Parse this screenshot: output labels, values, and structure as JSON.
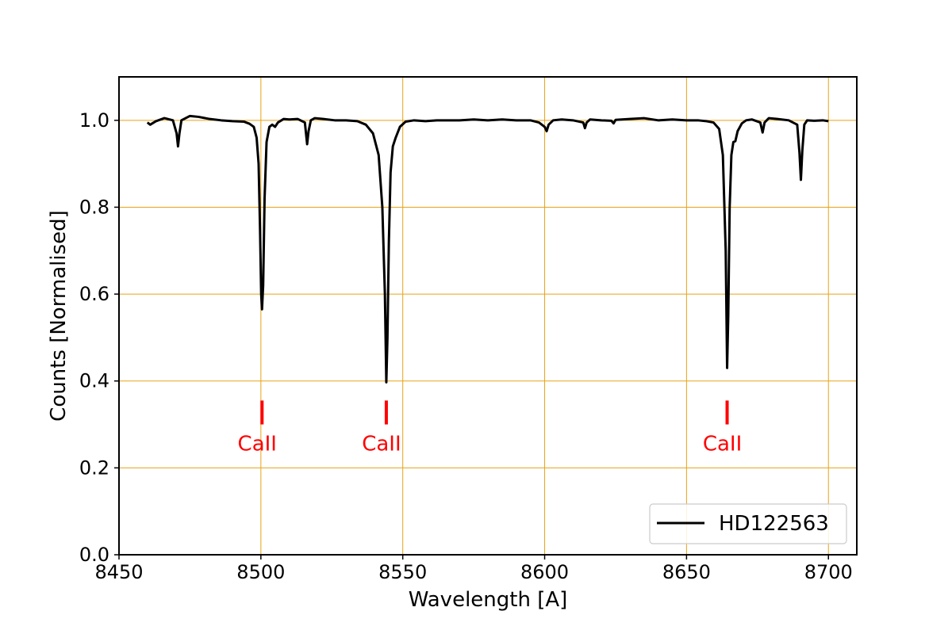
{
  "chart_data": {
    "type": "line",
    "xlabel": "Wavelength [A]",
    "ylabel": "Counts [Normalised]",
    "xlim": [
      8450,
      8710
    ],
    "ylim": [
      0.0,
      1.1
    ],
    "x_ticks": [
      8450,
      8500,
      8550,
      8600,
      8650,
      8700
    ],
    "y_ticks": [
      0.0,
      0.2,
      0.4,
      0.6,
      0.8,
      1.0
    ],
    "x_tick_labels": [
      "8450",
      "8500",
      "8550",
      "8600",
      "8650",
      "8700"
    ],
    "y_tick_labels": [
      "0.0",
      "0.2",
      "0.4",
      "0.6",
      "0.8",
      "1.0"
    ],
    "grid": true,
    "grid_color": "#e8a317",
    "legend_position": "lower-right",
    "series": [
      {
        "name": "HD122563",
        "color": "#000000",
        "x": [
          8460,
          8461,
          8463,
          8466,
          8469,
          8470.3,
          8470.8,
          8471.3,
          8472,
          8475,
          8478,
          8482,
          8486,
          8490,
          8494,
          8496,
          8497.5,
          8498.5,
          8499.2,
          8499.7,
          8500.1,
          8500.4,
          8500.8,
          8501.3,
          8502,
          8503,
          8504,
          8505,
          8506,
          8508,
          8510,
          8513,
          8515.5,
          8516.3,
          8516.8,
          8517.6,
          8519,
          8522,
          8526,
          8530,
          8534,
          8537,
          8539.5,
          8541.5,
          8542.8,
          8543.7,
          8544.2,
          8544.6,
          8545.1,
          8545.7,
          8546.5,
          8547.5,
          8549,
          8551,
          8554,
          8558,
          8562,
          8566,
          8570,
          8575,
          8580,
          8585,
          8590,
          8595,
          8598,
          8600,
          8600.7,
          8601.4,
          8603,
          8606,
          8610,
          8613.6,
          8614.2,
          8614.8,
          8616,
          8620,
          8623.5,
          8624.3,
          8625,
          8630,
          8635,
          8640,
          8645,
          8650,
          8654,
          8657,
          8659.5,
          8661.5,
          8662.8,
          8663.8,
          8664.3,
          8664.7,
          8665.2,
          8665.8,
          8666.5,
          8667.2,
          8668,
          8669.5,
          8671,
          8673,
          8676,
          8676.8,
          8677.5,
          8679,
          8682,
          8686,
          8689,
          8689.8,
          8690.3,
          8690.8,
          8691.5,
          8692.5,
          8695,
          8698,
          8700
        ],
        "y": [
          0.995,
          0.99,
          0.998,
          1.005,
          1.0,
          0.97,
          0.94,
          0.97,
          1.0,
          1.01,
          1.008,
          1.003,
          1.0,
          0.998,
          0.997,
          0.992,
          0.985,
          0.96,
          0.9,
          0.75,
          0.6,
          0.565,
          0.62,
          0.82,
          0.95,
          0.985,
          0.99,
          0.985,
          0.995,
          1.003,
          1.002,
          1.003,
          0.995,
          0.945,
          0.975,
          1.0,
          1.005,
          1.003,
          1.0,
          1.0,
          0.998,
          0.99,
          0.97,
          0.92,
          0.8,
          0.6,
          0.397,
          0.5,
          0.72,
          0.88,
          0.94,
          0.96,
          0.985,
          0.997,
          1.0,
          0.998,
          1.0,
          1.0,
          1.0,
          1.002,
          1.0,
          1.002,
          1.0,
          1.0,
          0.995,
          0.985,
          0.975,
          0.99,
          1.0,
          1.002,
          1.0,
          0.995,
          0.982,
          0.995,
          1.002,
          1.0,
          0.999,
          0.993,
          1.001,
          1.003,
          1.005,
          1.0,
          1.002,
          1.0,
          1.0,
          0.998,
          0.995,
          0.98,
          0.92,
          0.7,
          0.43,
          0.55,
          0.8,
          0.92,
          0.95,
          0.952,
          0.975,
          0.993,
          1.0,
          1.002,
          0.995,
          0.972,
          0.995,
          1.005,
          1.003,
          1.0,
          0.99,
          0.925,
          0.863,
          0.93,
          0.99,
          1.0,
          0.999,
          1.0,
          0.998
        ]
      }
    ],
    "annotations": [
      {
        "x": 8500.4,
        "text": "CaII",
        "color": "#ff0000"
      },
      {
        "x": 8544.2,
        "text": "CaII",
        "color": "#ff0000"
      },
      {
        "x": 8664.3,
        "text": "CaII",
        "color": "#ff0000"
      }
    ]
  }
}
